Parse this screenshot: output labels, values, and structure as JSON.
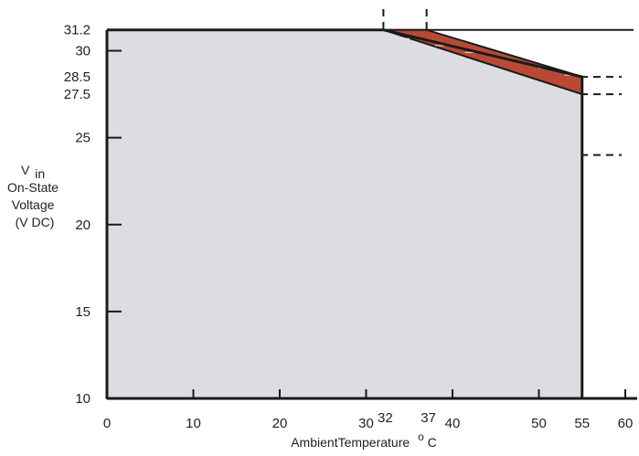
{
  "chart_data": {
    "type": "area",
    "title": "",
    "xlabel": "AmbientTemperature",
    "xlabel_unit_sup": "o",
    "xlabel_unit": "C",
    "ylabel_lines": [
      "V",
      "in",
      "On-State",
      "Voltage",
      "(V DC)"
    ],
    "xlim": [
      0,
      60
    ],
    "ylim": [
      10,
      31.5
    ],
    "x_ticks": [
      0,
      10,
      20,
      30,
      40,
      50,
      55,
      60
    ],
    "x_extra_labels": [
      {
        "value": 32,
        "label": "32"
      },
      {
        "value": 37,
        "label": "37"
      }
    ],
    "y_ticks": [
      10,
      15,
      20,
      25,
      30
    ],
    "y_extra_labels": [
      {
        "value": 31.2,
        "label": "31.2"
      },
      {
        "value": 28.5,
        "label": "28.5"
      },
      {
        "value": 27.5,
        "label": "27.5"
      }
    ],
    "operating_region": {
      "x": [
        0,
        32,
        55,
        55,
        0
      ],
      "y": [
        31.2,
        31.2,
        28.5,
        10,
        10
      ],
      "fill": "#dcdde0",
      "stroke": "#1a1a1a"
    },
    "derated_region": {
      "x": [
        32,
        37,
        55,
        55
      ],
      "y": [
        31.2,
        31.2,
        28.5,
        27.5
      ],
      "fill": "#b84a35"
    },
    "reference_lines": {
      "horizontal": [
        28.5,
        27.5,
        24
      ],
      "vertical": [
        32,
        37
      ],
      "top_line_y": 31.2
    },
    "grid": false,
    "legend": "none",
    "colors": {
      "axis": "#1a1a1a",
      "dashed": "#1a1a1a",
      "text": "#222222"
    }
  }
}
